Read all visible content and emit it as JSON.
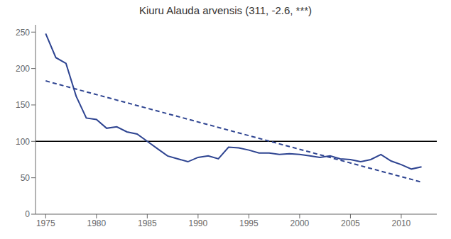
{
  "chart_data": {
    "type": "line",
    "title": "Kiuru Alauda arvensis (311, -2.6, ***)",
    "x": [
      1975,
      1976,
      1977,
      1978,
      1979,
      1980,
      1981,
      1982,
      1983,
      1984,
      1985,
      1986,
      1987,
      1988,
      1989,
      1990,
      1991,
      1992,
      1993,
      1994,
      1995,
      1996,
      1997,
      1998,
      1999,
      2000,
      2001,
      2002,
      2003,
      2004,
      2005,
      2006,
      2007,
      2008,
      2009,
      2010,
      2011,
      2012
    ],
    "series": [
      {
        "color": "#2e4491",
        "line_style": "solid",
        "values": [
          248,
          215,
          207,
          162,
          132,
          130,
          118,
          120,
          113,
          110,
          100,
          90,
          80,
          76,
          72,
          78,
          80,
          76,
          92,
          91,
          88,
          84,
          84,
          82,
          83,
          82,
          80,
          78,
          80,
          76,
          75,
          72,
          75,
          82,
          73,
          68,
          62,
          65
        ]
      },
      {
        "color": "#2e4491",
        "line_style": "dashed",
        "x": [
          1975,
          2012
        ],
        "values": [
          183,
          44
        ]
      }
    ],
    "hline": {
      "y": 100,
      "color": "#000000"
    },
    "xlim": [
      1974.0,
      2013.5
    ],
    "ylim": [
      0,
      260
    ],
    "xticks": [
      1975,
      1980,
      1985,
      1990,
      1995,
      2000,
      2005,
      2010
    ],
    "yticks": [
      0,
      50,
      100,
      150,
      200,
      250
    ],
    "grid": false
  }
}
